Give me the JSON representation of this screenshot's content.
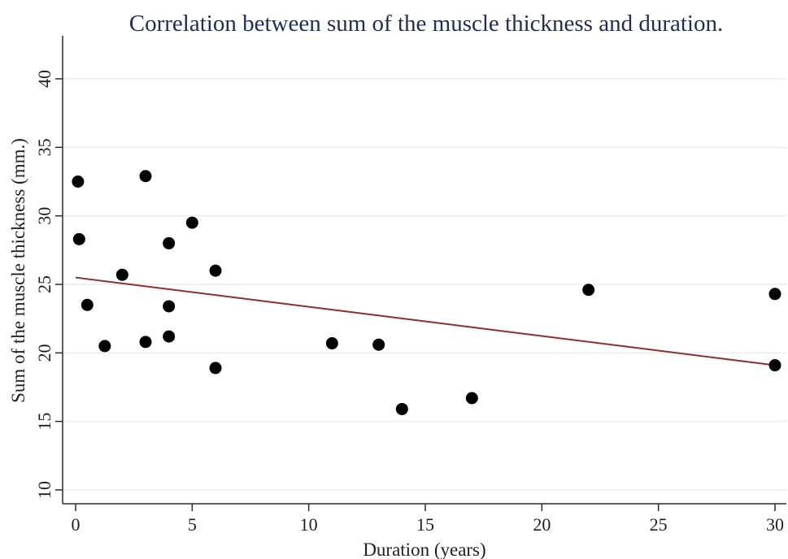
{
  "chart_data": {
    "type": "scatter",
    "title": "Correlation between sum of the muscle thickness and duration.",
    "xlabel": "Duration (years)",
    "ylabel": "Sum of the muscle thickness (mm.)",
    "xlim": [
      0,
      30
    ],
    "ylim": [
      10,
      40
    ],
    "xticks": [
      0,
      5,
      10,
      15,
      20,
      25,
      30
    ],
    "yticks": [
      10,
      15,
      20,
      25,
      30,
      35,
      40
    ],
    "grid": true,
    "series": [
      {
        "points": [
          {
            "x": 0.1,
            "y": 32.5
          },
          {
            "x": 0.15,
            "y": 28.3
          },
          {
            "x": 0.5,
            "y": 23.5
          },
          {
            "x": 1.25,
            "y": 20.5
          },
          {
            "x": 2.0,
            "y": 25.7
          },
          {
            "x": 3.0,
            "y": 32.9
          },
          {
            "x": 3.0,
            "y": 20.8
          },
          {
            "x": 4.0,
            "y": 28.0
          },
          {
            "x": 4.0,
            "y": 23.4
          },
          {
            "x": 4.0,
            "y": 21.2
          },
          {
            "x": 5.0,
            "y": 29.5
          },
          {
            "x": 6.0,
            "y": 26.0
          },
          {
            "x": 6.0,
            "y": 18.9
          },
          {
            "x": 11.0,
            "y": 20.7
          },
          {
            "x": 13.0,
            "y": 20.6
          },
          {
            "x": 14.0,
            "y": 15.9
          },
          {
            "x": 17.0,
            "y": 16.7
          },
          {
            "x": 22.0,
            "y": 24.6
          },
          {
            "x": 30.0,
            "y": 24.3
          },
          {
            "x": 30.0,
            "y": 19.1
          }
        ]
      }
    ],
    "fit_line": {
      "x": [
        0,
        30
      ],
      "y": [
        25.5,
        19.1
      ]
    },
    "colors": {
      "point": "#000000",
      "fit_line": "#8b2f2f",
      "grid": "#ececec",
      "axis": "#2b2b2b",
      "title": "#1f2d5a"
    }
  }
}
